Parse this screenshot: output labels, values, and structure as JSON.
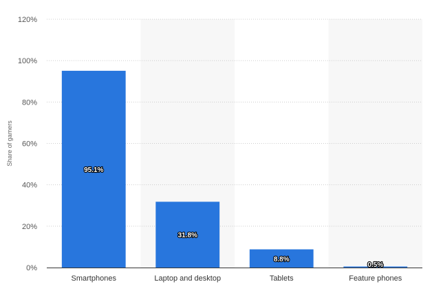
{
  "chart_data": {
    "type": "bar",
    "categories": [
      "Smartphones",
      "Laptop and desktop",
      "Tablets",
      "Feature phones"
    ],
    "values": [
      95.1,
      31.8,
      8.8,
      0.5
    ],
    "value_labels": [
      "95.1%",
      "31.8%",
      "8.8%",
      "0.5%"
    ],
    "title": "",
    "xlabel": "",
    "ylabel": "Share of gamers",
    "ylim": [
      0,
      120
    ],
    "yticks": [
      0,
      20,
      40,
      60,
      80,
      100,
      120
    ],
    "ytick_labels": [
      "0%",
      "20%",
      "40%",
      "60%",
      "80%",
      "100%",
      "120%"
    ],
    "grid": true,
    "legend": "none",
    "bar_color": "#2876dd",
    "alt_band_color": "#f7f7f7",
    "grid_color": "#cccccc"
  }
}
